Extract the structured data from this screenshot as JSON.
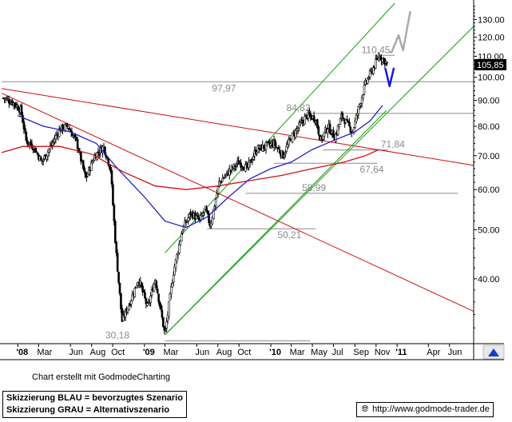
{
  "chart_data": {
    "type": "candlestick",
    "y_scale": "log",
    "ylim": [
      30,
      140
    ],
    "last_price_label": "105,85",
    "yticks": [
      {
        "v": 130,
        "label": "130.00"
      },
      {
        "v": 120,
        "label": "120.00"
      },
      {
        "v": 110,
        "label": "110.00"
      },
      {
        "v": 100,
        "label": "100.00"
      },
      {
        "v": 90,
        "label": "90.00"
      },
      {
        "v": 80,
        "label": "80.00"
      },
      {
        "v": 70,
        "label": "70.00"
      },
      {
        "v": 60,
        "label": "60.00"
      },
      {
        "v": 50,
        "label": "50.00"
      },
      {
        "v": 40,
        "label": "40.00"
      }
    ],
    "x_range": [
      "2007-11-15",
      "2011-08-10"
    ],
    "xticks": [
      {
        "date": "2008-01-01",
        "label": "'08",
        "bold": true
      },
      {
        "date": "2008-03-01",
        "label": "Mar"
      },
      {
        "date": "2008-06-01",
        "label": "Jun"
      },
      {
        "date": "2008-08-01",
        "label": "Aug"
      },
      {
        "date": "2008-10-01",
        "label": "Oct"
      },
      {
        "date": "2009-01-01",
        "label": "'09",
        "bold": true
      },
      {
        "date": "2009-03-01",
        "label": "Mar"
      },
      {
        "date": "2009-06-01",
        "label": "Jun"
      },
      {
        "date": "2009-08-01",
        "label": "Aug"
      },
      {
        "date": "2009-10-01",
        "label": "Oct"
      },
      {
        "date": "2010-01-01",
        "label": "'10",
        "bold": true
      },
      {
        "date": "2010-03-01",
        "label": "Mar"
      },
      {
        "date": "2010-05-01",
        "label": "May"
      },
      {
        "date": "2010-07-01",
        "label": "Jul"
      },
      {
        "date": "2010-09-01",
        "label": "Sep"
      },
      {
        "date": "2010-11-01",
        "label": "Nov"
      },
      {
        "date": "2011-01-01",
        "label": "'11",
        "bold": true
      },
      {
        "date": "2011-04-01",
        "label": "Apr"
      },
      {
        "date": "2011-06-01",
        "label": "Jun"
      }
    ],
    "price_path": [
      [
        "2007-11-20",
        91
      ],
      [
        "2007-12-20",
        89
      ],
      [
        "2008-01-10",
        86
      ],
      [
        "2008-01-25",
        75
      ],
      [
        "2008-02-15",
        73
      ],
      [
        "2008-03-10",
        68
      ],
      [
        "2008-04-05",
        73
      ],
      [
        "2008-05-01",
        79
      ],
      [
        "2008-05-25",
        80
      ],
      [
        "2008-06-20",
        74
      ],
      [
        "2008-07-15",
        63
      ],
      [
        "2008-08-10",
        70
      ],
      [
        "2008-09-05",
        73
      ],
      [
        "2008-09-25",
        66
      ],
      [
        "2008-10-10",
        46
      ],
      [
        "2008-10-28",
        33
      ],
      [
        "2008-11-20",
        36
      ],
      [
        "2008-12-15",
        40
      ],
      [
        "2009-01-10",
        35
      ],
      [
        "2009-02-01",
        40
      ],
      [
        "2009-03-01",
        31
      ],
      [
        "2009-03-25",
        41
      ],
      [
        "2009-04-20",
        50
      ],
      [
        "2009-05-15",
        54
      ],
      [
        "2009-06-10",
        52
      ],
      [
        "2009-06-25",
        55
      ],
      [
        "2009-07-10",
        51
      ],
      [
        "2009-08-05",
        62
      ],
      [
        "2009-09-01",
        65
      ],
      [
        "2009-10-01",
        68
      ],
      [
        "2009-10-25",
        66
      ],
      [
        "2009-11-20",
        72
      ],
      [
        "2010-01-10",
        74
      ],
      [
        "2010-02-05",
        70
      ],
      [
        "2010-03-01",
        76
      ],
      [
        "2010-04-15",
        84
      ],
      [
        "2010-05-10",
        83
      ],
      [
        "2010-05-25",
        75
      ],
      [
        "2010-06-15",
        80
      ],
      [
        "2010-07-05",
        76
      ],
      [
        "2010-07-25",
        84
      ],
      [
        "2010-08-25",
        78
      ],
      [
        "2010-09-10",
        86
      ],
      [
        "2010-10-01",
        97
      ],
      [
        "2010-10-20",
        103
      ],
      [
        "2010-11-10",
        110.45
      ],
      [
        "2010-11-30",
        107
      ],
      [
        "2010-12-05",
        105.85
      ]
    ],
    "ma_blue": [
      [
        "2008-01-01",
        84
      ],
      [
        "2008-03-15",
        80
      ],
      [
        "2008-06-01",
        78
      ],
      [
        "2008-08-15",
        74
      ],
      [
        "2008-10-15",
        66
      ],
      [
        "2009-01-01",
        58
      ],
      [
        "2009-03-01",
        52
      ],
      [
        "2009-05-01",
        50.5
      ],
      [
        "2009-07-01",
        53
      ],
      [
        "2009-09-01",
        58
      ],
      [
        "2009-11-01",
        63
      ],
      [
        "2010-01-01",
        66
      ],
      [
        "2010-03-01",
        68
      ],
      [
        "2010-05-01",
        72
      ],
      [
        "2010-07-01",
        75
      ],
      [
        "2010-09-01",
        78
      ],
      [
        "2010-10-15",
        82
      ],
      [
        "2010-11-20",
        88
      ]
    ],
    "ma_red": [
      [
        "2007-11-15",
        71
      ],
      [
        "2008-01-15",
        73
      ],
      [
        "2008-05-01",
        73
      ],
      [
        "2008-08-01",
        70.5
      ],
      [
        "2008-11-01",
        65
      ],
      [
        "2009-02-01",
        61
      ],
      [
        "2009-05-01",
        60
      ],
      [
        "2009-08-01",
        61
      ],
      [
        "2009-11-01",
        62.5
      ],
      [
        "2010-02-01",
        64
      ],
      [
        "2010-05-01",
        66
      ],
      [
        "2010-08-01",
        68
      ],
      [
        "2010-10-01",
        70
      ],
      [
        "2010-11-10",
        72
      ]
    ],
    "red_trendlines": [
      [
        [
          "2007-11-15",
          95
        ],
        [
          "2011-08-10",
          67
        ]
      ],
      [
        [
          "2007-11-15",
          93
        ],
        [
          "2011-08-10",
          34.5
        ]
      ]
    ],
    "green_channel": [
      [
        [
          "2009-03-01",
          45
        ],
        [
          "2010-12-25",
          140
        ]
      ],
      [
        [
          "2009-03-01",
          31
        ],
        [
          "2011-08-10",
          126
        ]
      ],
      [
        [
          "2009-03-01",
          31
        ],
        [
          "2010-12-01",
          86
        ]
      ]
    ],
    "gray_levels": [
      {
        "v": 97.97,
        "x0": "2007-11-15",
        "x1": "2011-08-10",
        "label": "97,97",
        "label_x": "2009-07-15",
        "pos": "below"
      },
      {
        "v": 110.45,
        "x0": "2010-11-10",
        "x1": "2010-12-25",
        "label": "110,45",
        "label_x": "2010-09-20",
        "pos": "above"
      },
      {
        "v": 84.82,
        "x0": "2010-04-10",
        "x1": "2011-08-10",
        "label": "84,82",
        "label_x": "2010-02-15",
        "pos": "above"
      },
      {
        "v": 71.84,
        "x0": "2010-06-01",
        "x1": "2010-12-05",
        "label": "71,84",
        "label_x": "2010-11-15",
        "pos": "above"
      },
      {
        "v": 67.64,
        "x0": "2010-01-10",
        "x1": "2010-11-05",
        "label": "67,64",
        "label_x": "2010-09-15",
        "pos": "below"
      },
      {
        "v": 58.99,
        "x0": "2009-10-20",
        "x1": "2011-06-25",
        "label": "58,99",
        "label_x": "2010-04-01",
        "pos": "above"
      },
      {
        "v": 50.21,
        "x0": "2009-07-01",
        "x1": "2010-05-10",
        "label": "50,21",
        "label_x": "2010-01-20",
        "pos": "below"
      },
      {
        "v": 30.18,
        "x0": "2009-03-01",
        "x1": "2010-04-25",
        "label": "30,18",
        "label_x": "2008-09-10",
        "pos": "above"
      }
    ],
    "scenario_gray": [
      [
        "2010-12-10",
        112
      ],
      [
        "2010-12-16",
        112
      ],
      [
        "2011-01-05",
        121
      ],
      [
        "2011-01-18",
        113
      ],
      [
        "2011-02-08",
        135
      ]
    ],
    "scenario_blue": [
      [
        "2010-11-28",
        104
      ],
      [
        "2010-12-10",
        96
      ],
      [
        "2010-12-22",
        104
      ]
    ]
  },
  "footer": {
    "credit": "Chart erstellt mit GodmodeCharting",
    "legend_blue": "Skizzierung BLAU = bevorzugtes Szenario",
    "legend_gray": "Skizzierung GRAU = Alternativszenario",
    "site_url": "http://www.godmode-trader.de",
    "site_icon": "globe-icon"
  },
  "colors": {
    "candles": "#000000",
    "ma_blue": "#2020c0",
    "ma_red": "#d01010",
    "trend_red": "#d01010",
    "channel_green": "#10a010",
    "level_gray": "#8a8a8a",
    "scenario_blue": "#1a1ad8",
    "scenario_gray": "#aaaaaa",
    "price_box": "#000000",
    "corner_icon": "#1a3bc8"
  }
}
